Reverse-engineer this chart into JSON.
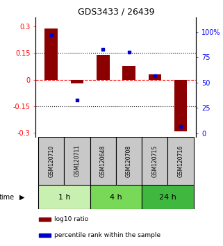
{
  "title": "GDS3433 / 26439",
  "samples": [
    "GSM120710",
    "GSM120711",
    "GSM120648",
    "GSM120708",
    "GSM120715",
    "GSM120716"
  ],
  "log10_ratio": [
    0.285,
    -0.02,
    0.14,
    0.075,
    0.03,
    -0.29
  ],
  "percentile_rank": [
    97,
    33,
    83,
    80,
    57,
    7
  ],
  "groups": [
    {
      "label": "1 h",
      "indices": [
        0,
        1
      ],
      "color": "#c8f0b0"
    },
    {
      "label": "4 h",
      "indices": [
        2,
        3
      ],
      "color": "#78d858"
    },
    {
      "label": "24 h",
      "indices": [
        4,
        5
      ],
      "color": "#40b840"
    }
  ],
  "bar_color": "#8B0000",
  "scatter_color": "#0000CC",
  "ylim_left": [
    -0.32,
    0.35
  ],
  "ylim_right": [
    -3.2,
    114.5
  ],
  "yticks_left": [
    -0.3,
    -0.15,
    0,
    0.15,
    0.3
  ],
  "yticks_right": [
    0,
    25,
    50,
    75,
    100
  ],
  "ytick_labels_right": [
    "0",
    "25",
    "50",
    "75",
    "100%"
  ],
  "hlines_dotted": [
    -0.15,
    0.15
  ],
  "hline_zero_color": "red",
  "bar_width": 0.5,
  "sample_box_color": "#c8c8c8",
  "legend_items": [
    {
      "color": "#8B0000",
      "label": "log10 ratio"
    },
    {
      "color": "#0000CC",
      "label": "percentile rank within the sample"
    }
  ]
}
